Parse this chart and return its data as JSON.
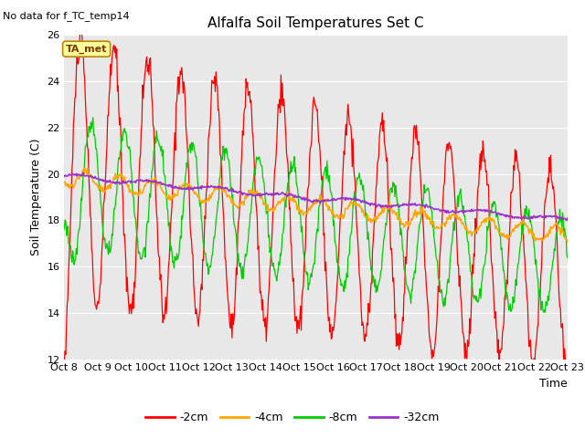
{
  "title": "Alfalfa Soil Temperatures Set C",
  "no_data_text": "No data for f_TC_temp14",
  "ylabel": "Soil Temperature (C)",
  "xlabel": "Time",
  "ylim": [
    12,
    26
  ],
  "xlim": [
    0,
    360
  ],
  "plot_bg_color": "#e8e8e8",
  "colors": {
    "2cm": "#ff0000",
    "4cm": "#ffa500",
    "8cm": "#00cc00",
    "32cm": "#9933cc"
  },
  "legend_labels": [
    "-2cm",
    "-4cm",
    "-8cm",
    "-32cm"
  ],
  "xtick_labels": [
    "Oct 8",
    "Oct 9",
    "Oct 10",
    "Oct 11",
    "Oct 12",
    "Oct 13",
    "Oct 14",
    "Oct 15",
    "Oct 16",
    "Oct 17",
    "Oct 18",
    "Oct 19",
    "Oct 20",
    "Oct 21",
    "Oct 22",
    "Oct 23"
  ],
  "xtick_positions": [
    0,
    24,
    48,
    72,
    96,
    120,
    144,
    168,
    192,
    216,
    240,
    264,
    288,
    312,
    336,
    360
  ],
  "ytick_positions": [
    12,
    14,
    16,
    18,
    20,
    22,
    24,
    26
  ],
  "ta_met_label": "TA_met"
}
